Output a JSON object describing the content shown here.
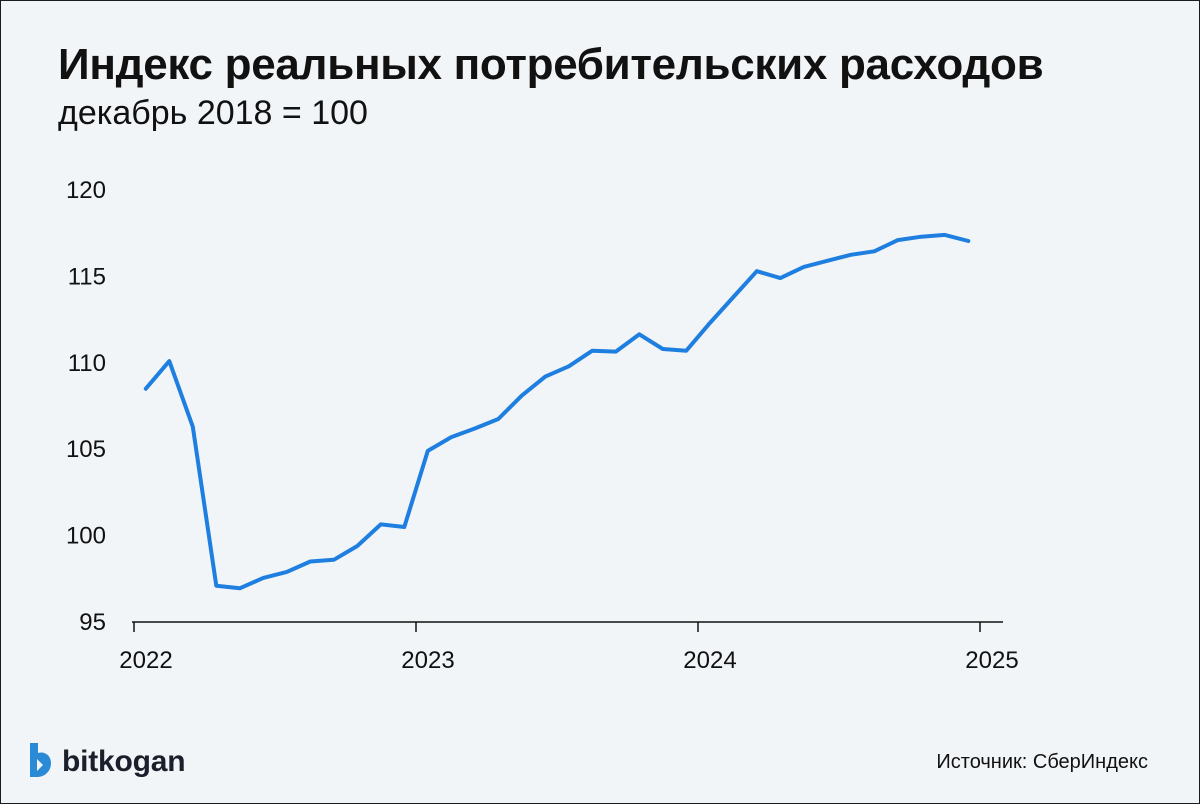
{
  "title": "Индекс реальных потребительских расходов",
  "subtitle": "декабрь 2018 = 100",
  "source": "Источник: СберИндекс",
  "logo_text": "bitkogan",
  "logo_icon": "bitkogan-logo-icon",
  "colors": {
    "line": "#1e7fe0",
    "axis": "#111111",
    "background": "#f2f5f8",
    "logo": "#2a8ad6"
  },
  "chart_data": {
    "type": "line",
    "title": "Индекс реальных потребительских расходов",
    "subtitle": "декабрь 2018 = 100",
    "xlabel": "",
    "ylabel": "",
    "ylim": [
      95,
      120
    ],
    "xlim": [
      2022.0,
      2025.0
    ],
    "yticks": [
      95,
      100,
      105,
      110,
      115,
      120
    ],
    "xticks": [
      2022,
      2023,
      2024,
      2025
    ],
    "grid": false,
    "legend": "none",
    "series": [
      {
        "x": [
          "2022-01",
          "2022-02",
          "2022-03",
          "2022-04",
          "2022-05",
          "2022-06",
          "2022-07",
          "2022-08",
          "2022-09",
          "2022-10",
          "2022-11",
          "2022-12",
          "2023-01",
          "2023-02",
          "2023-03",
          "2023-04",
          "2023-05",
          "2023-06",
          "2023-07",
          "2023-08",
          "2023-09",
          "2023-10",
          "2023-11",
          "2023-12",
          "2024-01",
          "2024-02",
          "2024-03",
          "2024-04",
          "2024-05",
          "2024-06",
          "2024-07",
          "2024-08",
          "2024-09",
          "2024-10",
          "2024-11",
          "2024-12"
        ],
        "values": [
          108.5,
          110.1,
          106.3,
          97.1,
          96.95,
          97.55,
          97.9,
          98.5,
          98.6,
          99.4,
          100.65,
          100.5,
          104.9,
          105.7,
          106.2,
          106.75,
          108.1,
          109.2,
          109.8,
          110.7,
          110.65,
          111.65,
          110.8,
          110.7,
          112.3,
          113.8,
          115.3,
          114.9,
          115.55,
          115.9,
          116.25,
          116.45,
          117.1,
          117.3,
          117.4,
          117.05
        ]
      }
    ]
  }
}
